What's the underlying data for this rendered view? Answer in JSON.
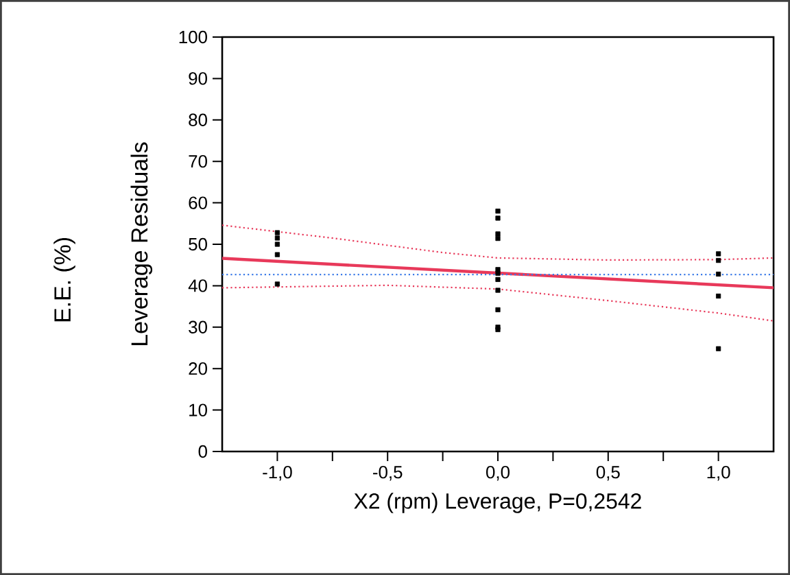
{
  "chart_data": {
    "type": "scatter",
    "title": "E.E. (%)",
    "ylabel": "Leverage Residuals",
    "xlabel": "X2 (rpm) Leverage, P=0,2542",
    "xlim": [
      -1.25,
      1.25
    ],
    "ylim": [
      0,
      100
    ],
    "xticks": [
      {
        "value": -1,
        "label": "-1,0"
      },
      {
        "value": -0.75,
        "label": null
      },
      {
        "value": -0.5,
        "label": "-0,5"
      },
      {
        "value": -0.25,
        "label": null
      },
      {
        "value": 0,
        "label": "0,0"
      },
      {
        "value": 0.25,
        "label": null
      },
      {
        "value": 0.5,
        "label": "0,5"
      },
      {
        "value": 0.75,
        "label": null
      },
      {
        "value": 1,
        "label": "1,0"
      }
    ],
    "yticks": [
      0,
      10,
      20,
      30,
      40,
      50,
      60,
      70,
      80,
      90,
      100
    ],
    "grid": false,
    "ref_lines": [
      {
        "axis": "y",
        "value": 42.7,
        "color": "#3b7be8",
        "line_style": "dotted"
      }
    ],
    "series": [
      {
        "color": "#000000",
        "marker": "square",
        "x": [
          -1,
          -1,
          -1,
          -1,
          -1,
          0,
          0,
          0,
          0,
          0,
          0,
          0,
          0,
          0,
          0,
          0,
          1,
          1,
          1,
          1,
          1
        ],
        "values": [
          52.8,
          51.5,
          50,
          47.5,
          40.4,
          58,
          56.3,
          52.5,
          51.4,
          43.9,
          43,
          41.5,
          38.9,
          34.2,
          30,
          29.4,
          47.7,
          46.1,
          42.8,
          37.5,
          24.8
        ]
      },
      {
        "type": "line",
        "color": "#e8395a",
        "line_style": "solid",
        "marker": "none",
        "x": [
          -1.25,
          1.25
        ],
        "values": [
          46.6,
          39.5
        ]
      },
      {
        "type": "line",
        "color": "#e8395a",
        "line_style": "dotted",
        "marker": "none",
        "x": [
          -1.25,
          -0.75,
          -0.25,
          0,
          0.5,
          1,
          1.25
        ],
        "values": [
          54.6,
          51.5,
          48,
          46.7,
          46.2,
          46.3,
          46.7
        ]
      },
      {
        "type": "line",
        "color": "#e8395a",
        "line_style": "dotted",
        "marker": "none",
        "x": [
          -1.25,
          -0.5,
          0,
          0.5,
          1,
          1.25
        ],
        "values": [
          39.5,
          40.1,
          39.2,
          36.4,
          33.4,
          31.5
        ]
      }
    ]
  }
}
